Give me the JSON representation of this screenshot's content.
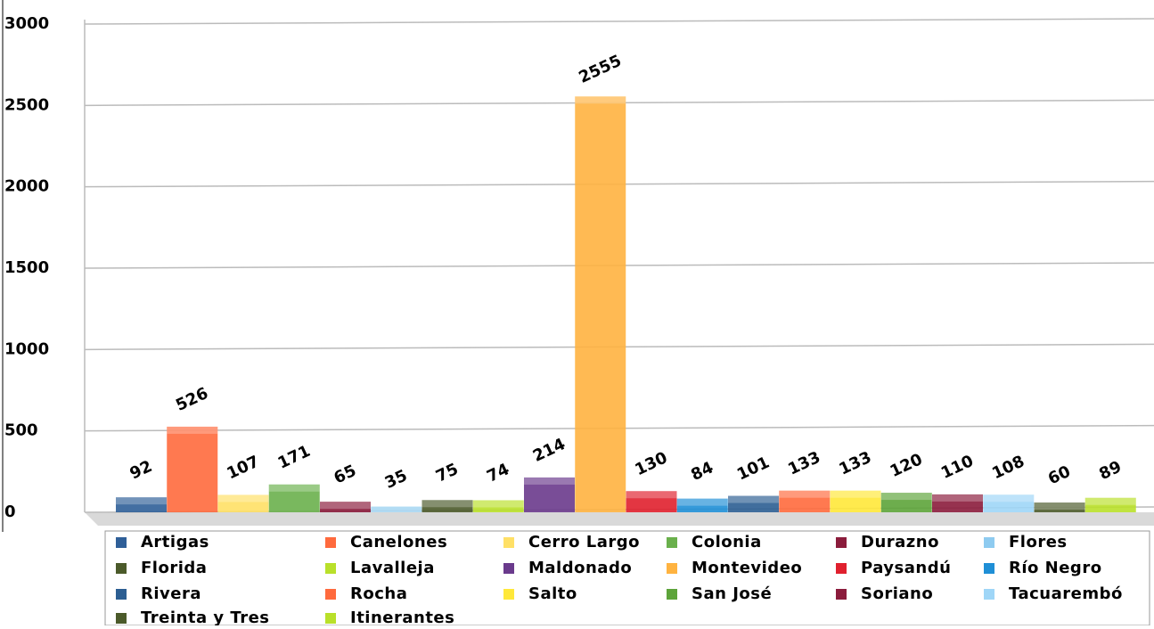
{
  "chart_data": {
    "type": "bar",
    "categories": [
      "Artigas",
      "Canelones",
      "Cerro Largo",
      "Colonia",
      "Durazno",
      "Flores",
      "Florida",
      "Lavalleja",
      "Maldonado",
      "Montevideo",
      "Paysandú",
      "Río Negro",
      "Rivera",
      "Rocha",
      "Salto",
      "San José",
      "Soriano",
      "Tacuarembó",
      "Treinta y Tres",
      "Itinerantes"
    ],
    "values": [
      92,
      526,
      107,
      171,
      65,
      35,
      75,
      74,
      214,
      2555,
      130,
      84,
      101,
      133,
      133,
      120,
      110,
      108,
      60,
      89
    ],
    "colors": [
      "#2f5f98",
      "#ff6a3d",
      "#ffe066",
      "#6ab04c",
      "#8b1c3c",
      "#8ecbf0",
      "#4b5a2a",
      "#b9e02a",
      "#6a3a8c",
      "#ffb340",
      "#e0202e",
      "#1f8fd6",
      "#2c5e92",
      "#ff6a3d",
      "#ffe83a",
      "#5da43a",
      "#8b1c3c",
      "#9fd6f7",
      "#4b5a2a",
      "#b9e02a"
    ],
    "ylim": [
      0,
      3000
    ],
    "yticks": [
      0,
      500,
      1000,
      1500,
      2000,
      2500,
      3000
    ],
    "grid": true,
    "legend": "bottom"
  }
}
